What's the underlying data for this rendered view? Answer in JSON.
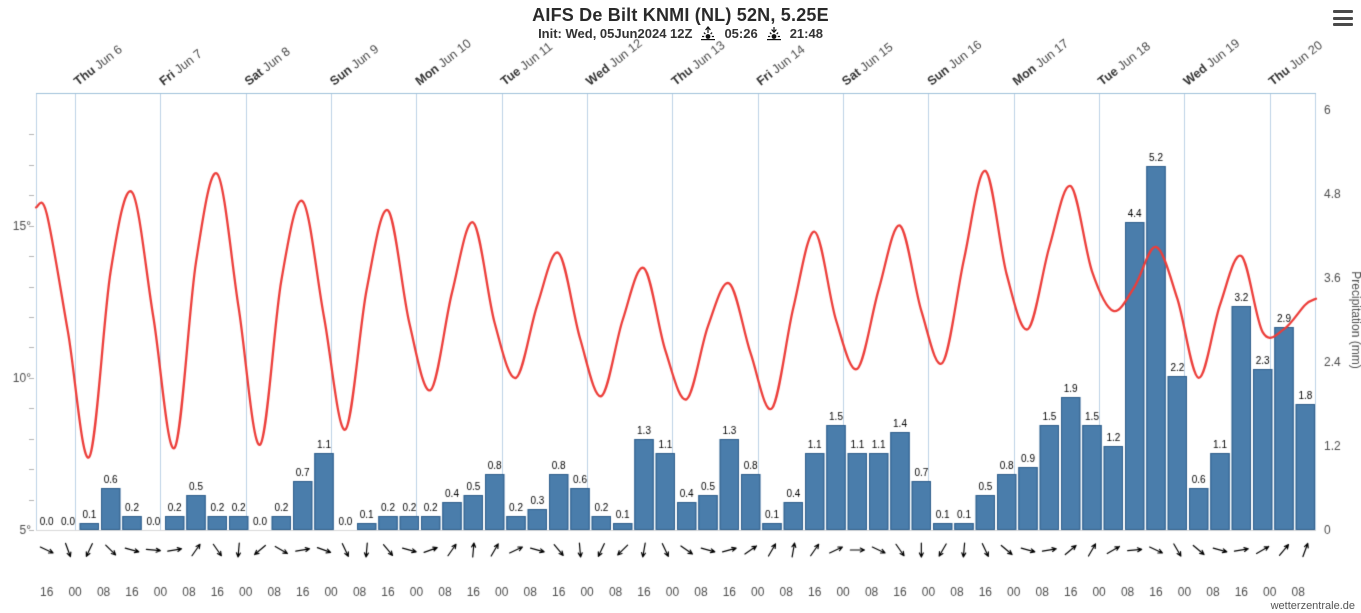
{
  "page": {
    "watermark": "wetterzentrale.de"
  },
  "header": {
    "title": "AIFS De Bilt KNMI (NL) 52N, 5.25E",
    "init": "Init: Wed, 05Jun2024 12Z",
    "sunrise": "05:26",
    "sunset": "21:48"
  },
  "icons": {
    "menu": "hamburger-menu",
    "sunrise": "sun-with-up-arrow",
    "sunset": "sun-with-down-arrow"
  },
  "colors": {
    "temperature_line": "#ec3e3a",
    "precip_bar": "#4a7dab",
    "precip_bar_border": "#2f5f8c",
    "grid": "#bdd2e6",
    "top_axis": "#9fc0da",
    "axis_text": "#4d4d4d",
    "bar_label": "#000000",
    "day_label": "#333333",
    "hour_label": "#4d4d4d",
    "wind_arrow": "#000000",
    "baseline": "#d8d8d8"
  },
  "chart_data": {
    "type": "combo-meteogram",
    "step_hours": 6,
    "days": [
      {
        "dow": "Thu",
        "date": "Jun 6"
      },
      {
        "dow": "Fri",
        "date": "Jun 7"
      },
      {
        "dow": "Sat",
        "date": "Jun 8"
      },
      {
        "dow": "Sun",
        "date": "Jun 9"
      },
      {
        "dow": "Mon",
        "date": "Jun 10"
      },
      {
        "dow": "Tue",
        "date": "Jun 11"
      },
      {
        "dow": "Wed",
        "date": "Jun 12"
      },
      {
        "dow": "Thu",
        "date": "Jun 13"
      },
      {
        "dow": "Fri",
        "date": "Jun 14"
      },
      {
        "dow": "Sat",
        "date": "Jun 15"
      },
      {
        "dow": "Sun",
        "date": "Jun 16"
      },
      {
        "dow": "Mon",
        "date": "Jun 17"
      },
      {
        "dow": "Tue",
        "date": "Jun 18"
      },
      {
        "dow": "Wed",
        "date": "Jun 19"
      },
      {
        "dow": "Thu",
        "date": "Jun 20"
      }
    ],
    "hour_labels": [
      "16",
      "00",
      "08",
      "16",
      "00",
      "08",
      "16",
      "00",
      "08",
      "16",
      "00",
      "08",
      "16",
      "00",
      "08",
      "16",
      "00",
      "08",
      "16",
      "00",
      "08",
      "16",
      "00",
      "08",
      "16",
      "00",
      "08",
      "16",
      "00",
      "08",
      "16",
      "00",
      "08",
      "16",
      "00",
      "08",
      "16",
      "00",
      "08",
      "16",
      "00",
      "08",
      "16",
      "00",
      "08"
    ],
    "temp_axis": {
      "min": 5,
      "max": 18.8,
      "ticks": [
        5,
        10,
        15
      ],
      "tick_labels": [
        "5°",
        "10°",
        "15°"
      ]
    },
    "precip_axis": {
      "min": 0,
      "max": 6,
      "ticks": [
        0,
        1.2,
        2.4,
        3.6,
        4.8,
        6
      ],
      "tick_labels": [
        "0",
        "1.2",
        "2.4",
        "3.6",
        "4.8",
        "6"
      ],
      "label": "Precipitation (mm)"
    },
    "series": [
      {
        "name": "temperature_2m",
        "type": "line",
        "unit": "°C",
        "values": [
          15.4,
          11.5,
          7.4,
          13.5,
          16.1,
          12.0,
          7.7,
          13.8,
          16.7,
          12.3,
          7.8,
          13.2,
          15.8,
          12.0,
          8.3,
          12.9,
          15.5,
          11.8,
          9.6,
          12.8,
          15.1,
          11.8,
          10.0,
          12.4,
          14.1,
          11.3,
          9.4,
          11.9,
          13.6,
          10.9,
          9.3,
          11.7,
          13.1,
          10.8,
          9.0,
          12.3,
          14.8,
          11.9,
          10.3,
          12.9,
          15.0,
          12.2,
          10.5,
          13.9,
          16.8,
          13.4,
          11.6,
          14.3,
          16.3,
          13.5,
          12.2,
          13.0,
          14.3,
          12.6,
          10.0,
          12.4,
          14.0,
          11.5,
          11.6,
          12.4
        ]
      },
      {
        "name": "precipitation_6h",
        "type": "bar",
        "unit": "mm",
        "values": [
          0.0,
          0.0,
          0.1,
          0.6,
          0.2,
          0.0,
          0.2,
          0.5,
          0.2,
          0.2,
          0.0,
          0.2,
          0.7,
          1.1,
          0.0,
          0.1,
          0.2,
          0.2,
          0.2,
          0.4,
          0.5,
          0.8,
          0.2,
          0.3,
          0.8,
          0.6,
          0.2,
          0.1,
          1.3,
          1.1,
          0.4,
          0.5,
          1.3,
          0.8,
          0.1,
          0.4,
          1.1,
          1.5,
          1.1,
          1.1,
          1.4,
          0.7,
          0.1,
          0.1,
          0.5,
          0.8,
          0.9,
          1.5,
          1.9,
          1.5,
          1.2,
          4.4,
          5.2,
          2.2,
          0.6,
          1.1,
          3.2,
          2.3,
          2.9,
          1.8
        ]
      }
    ],
    "wind_arrows_deg": [
      25,
      70,
      115,
      45,
      15,
      5,
      350,
      305,
      55,
      95,
      140,
      30,
      350,
      20,
      65,
      95,
      50,
      15,
      340,
      305,
      275,
      300,
      335,
      15,
      50,
      85,
      115,
      135,
      100,
      65,
      35,
      15,
      345,
      325,
      300,
      280,
      305,
      335,
      0,
      25,
      55,
      90,
      120,
      95,
      65,
      40,
      15,
      350,
      320,
      300,
      330,
      355,
      25,
      60,
      40,
      15,
      350,
      330,
      310,
      290
    ]
  }
}
